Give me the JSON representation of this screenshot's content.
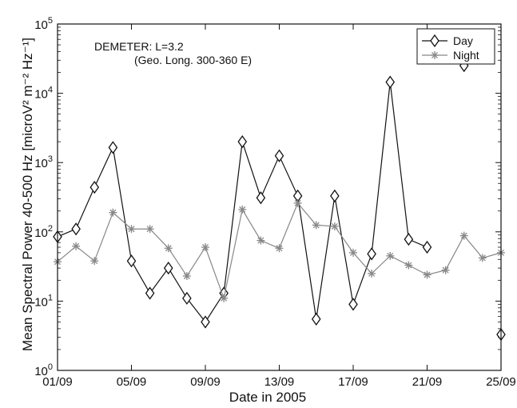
{
  "chart_data": {
    "type": "line",
    "title": "",
    "xlabel": "Date in 2005",
    "ylabel": "Mean Spectral Power 40-500 Hz [microV² m⁻² Hz⁻¹]",
    "yscale": "log",
    "ylim": [
      1,
      100000
    ],
    "xlim": [
      "2005-09-01",
      "2005-09-25"
    ],
    "x_ticks": [
      "01/09",
      "05/09",
      "09/09",
      "13/09",
      "17/09",
      "21/09",
      "25/09"
    ],
    "y_ticks": [
      "10^0",
      "10^1",
      "10^2",
      "10^3",
      "10^4",
      "10^5"
    ],
    "grid": false,
    "legend_position": "top-right",
    "annotations": [
      "DEMETER:  L=3.2",
      "(Geo. Long. 300-360 E)"
    ],
    "series": [
      {
        "name": "Day",
        "marker": "diamond",
        "color": "#111111",
        "points": [
          {
            "x": "2005-09-01",
            "y": 85
          },
          {
            "x": "2005-09-02",
            "y": 110
          },
          {
            "x": "2005-09-03",
            "y": 440
          },
          {
            "x": "2005-09-04",
            "y": 1650
          },
          {
            "x": "2005-09-05",
            "y": 38
          },
          {
            "x": "2005-09-06",
            "y": 13
          },
          {
            "x": "2005-09-07",
            "y": 30
          },
          {
            "x": "2005-09-08",
            "y": 11
          },
          {
            "x": "2005-09-09",
            "y": 5
          },
          {
            "x": "2005-09-10",
            "y": 13
          },
          {
            "x": "2005-09-11",
            "y": 2000
          },
          {
            "x": "2005-09-12",
            "y": 310
          },
          {
            "x": "2005-09-13",
            "y": 1250
          },
          {
            "x": "2005-09-14",
            "y": 330
          },
          {
            "x": "2005-09-15",
            "y": 5.5
          },
          {
            "x": "2005-09-16",
            "y": 330
          },
          {
            "x": "2005-09-17",
            "y": 9
          },
          {
            "x": "2005-09-18",
            "y": 48
          },
          {
            "x": "2005-09-19",
            "y": 14500
          },
          {
            "x": "2005-09-20",
            "y": 78
          },
          {
            "x": "2005-09-21",
            "y": 60
          },
          {
            "x": "2005-09-23",
            "y": 25000
          },
          {
            "x": "2005-09-25",
            "y": 3.3
          }
        ]
      },
      {
        "name": "Night",
        "marker": "asterisk",
        "color": "#888888",
        "points": [
          {
            "x": "2005-09-01",
            "y": 37
          },
          {
            "x": "2005-09-02",
            "y": 62
          },
          {
            "x": "2005-09-03",
            "y": 38
          },
          {
            "x": "2005-09-04",
            "y": 190
          },
          {
            "x": "2005-09-05",
            "y": 110
          },
          {
            "x": "2005-09-06",
            "y": 110
          },
          {
            "x": "2005-09-07",
            "y": 58
          },
          {
            "x": "2005-09-08",
            "y": 23
          },
          {
            "x": "2005-09-09",
            "y": 60
          },
          {
            "x": "2005-09-10",
            "y": 11
          },
          {
            "x": "2005-09-11",
            "y": 210
          },
          {
            "x": "2005-09-12",
            "y": 75
          },
          {
            "x": "2005-09-13",
            "y": 58
          },
          {
            "x": "2005-09-14",
            "y": 260
          },
          {
            "x": "2005-09-15",
            "y": 125
          },
          {
            "x": "2005-09-16",
            "y": 120
          },
          {
            "x": "2005-09-17",
            "y": 50
          },
          {
            "x": "2005-09-18",
            "y": 25
          },
          {
            "x": "2005-09-19",
            "y": 45
          },
          {
            "x": "2005-09-20",
            "y": 33
          },
          {
            "x": "2005-09-21",
            "y": 24
          },
          {
            "x": "2005-09-22",
            "y": 28
          },
          {
            "x": "2005-09-23",
            "y": 88
          },
          {
            "x": "2005-09-24",
            "y": 42
          },
          {
            "x": "2005-09-25",
            "y": 50
          }
        ]
      }
    ]
  }
}
